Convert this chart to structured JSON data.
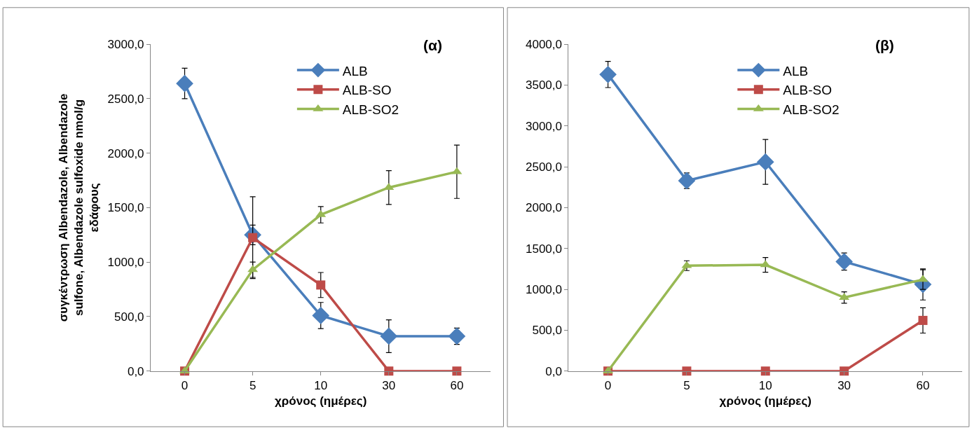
{
  "chart_data": [
    {
      "type": "line",
      "title": "(α)",
      "xlabel": "χρόνος (ημέρες)",
      "ylabel": "συγκέντρωση Albendazole, Albendazole sulfone, Albendazole sulfoxide nmol/g εδάφους",
      "categories": [
        "0",
        "5",
        "10",
        "30",
        "60"
      ],
      "ylim": [
        0,
        3000
      ],
      "yticks": [
        {
          "value": 0,
          "label": "0,0"
        },
        {
          "value": 500,
          "label": "500,0"
        },
        {
          "value": 1000,
          "label": "1000,0"
        },
        {
          "value": 1500,
          "label": "1500,0"
        },
        {
          "value": 2000,
          "label": "2000,0"
        },
        {
          "value": 2500,
          "label": "2500,0"
        },
        {
          "value": 3000,
          "label": "3000,0"
        }
      ],
      "grid": false,
      "legend": "top right",
      "series": [
        {
          "name": "ALB",
          "color": "#4a7ebb",
          "marker": "diamond",
          "values": [
            2640,
            1250,
            510,
            320,
            320
          ],
          "errors": [
            140,
            90,
            120,
            150,
            75
          ]
        },
        {
          "name": "ALB-SO",
          "color": "#be4b48",
          "marker": "square",
          "values": [
            0,
            1225,
            790,
            0,
            0
          ],
          "errors": [
            null,
            375,
            115,
            null,
            null
          ]
        },
        {
          "name": "ALB-SO2",
          "color": "#98b954",
          "marker": "triangle",
          "values": [
            0,
            930,
            1435,
            1685,
            1830
          ],
          "errors": [
            null,
            70,
            75,
            155,
            245
          ]
        }
      ]
    },
    {
      "type": "line",
      "title": "(β)",
      "xlabel": "χρόνος (ημέρες)",
      "categories": [
        "0",
        "5",
        "10",
        "30",
        "60"
      ],
      "ylim": [
        0,
        4000
      ],
      "yticks": [
        {
          "value": 0,
          "label": "0,0"
        },
        {
          "value": 500,
          "label": "500,0"
        },
        {
          "value": 1000,
          "label": "1000,0"
        },
        {
          "value": 1500,
          "label": "1500,0"
        },
        {
          "value": 2000,
          "label": "2000,0"
        },
        {
          "value": 2500,
          "label": "2500,0"
        },
        {
          "value": 3000,
          "label": "3000,0"
        },
        {
          "value": 3500,
          "label": "3500,0"
        },
        {
          "value": 4000,
          "label": "4000,0"
        }
      ],
      "grid": false,
      "legend": "top right",
      "series": [
        {
          "name": "ALB",
          "color": "#4a7ebb",
          "marker": "diamond",
          "values": [
            3630,
            2330,
            2560,
            1340,
            1060
          ],
          "errors": [
            160,
            95,
            275,
            105,
            190
          ]
        },
        {
          "name": "ALB-SO",
          "color": "#be4b48",
          "marker": "square",
          "values": [
            0,
            0,
            0,
            0,
            620
          ],
          "errors": [
            null,
            null,
            null,
            null,
            155
          ]
        },
        {
          "name": "ALB-SO2",
          "color": "#98b954",
          "marker": "triangle",
          "values": [
            0,
            1290,
            1300,
            900,
            1120
          ],
          "errors": [
            null,
            60,
            90,
            70,
            120
          ]
        }
      ]
    }
  ]
}
